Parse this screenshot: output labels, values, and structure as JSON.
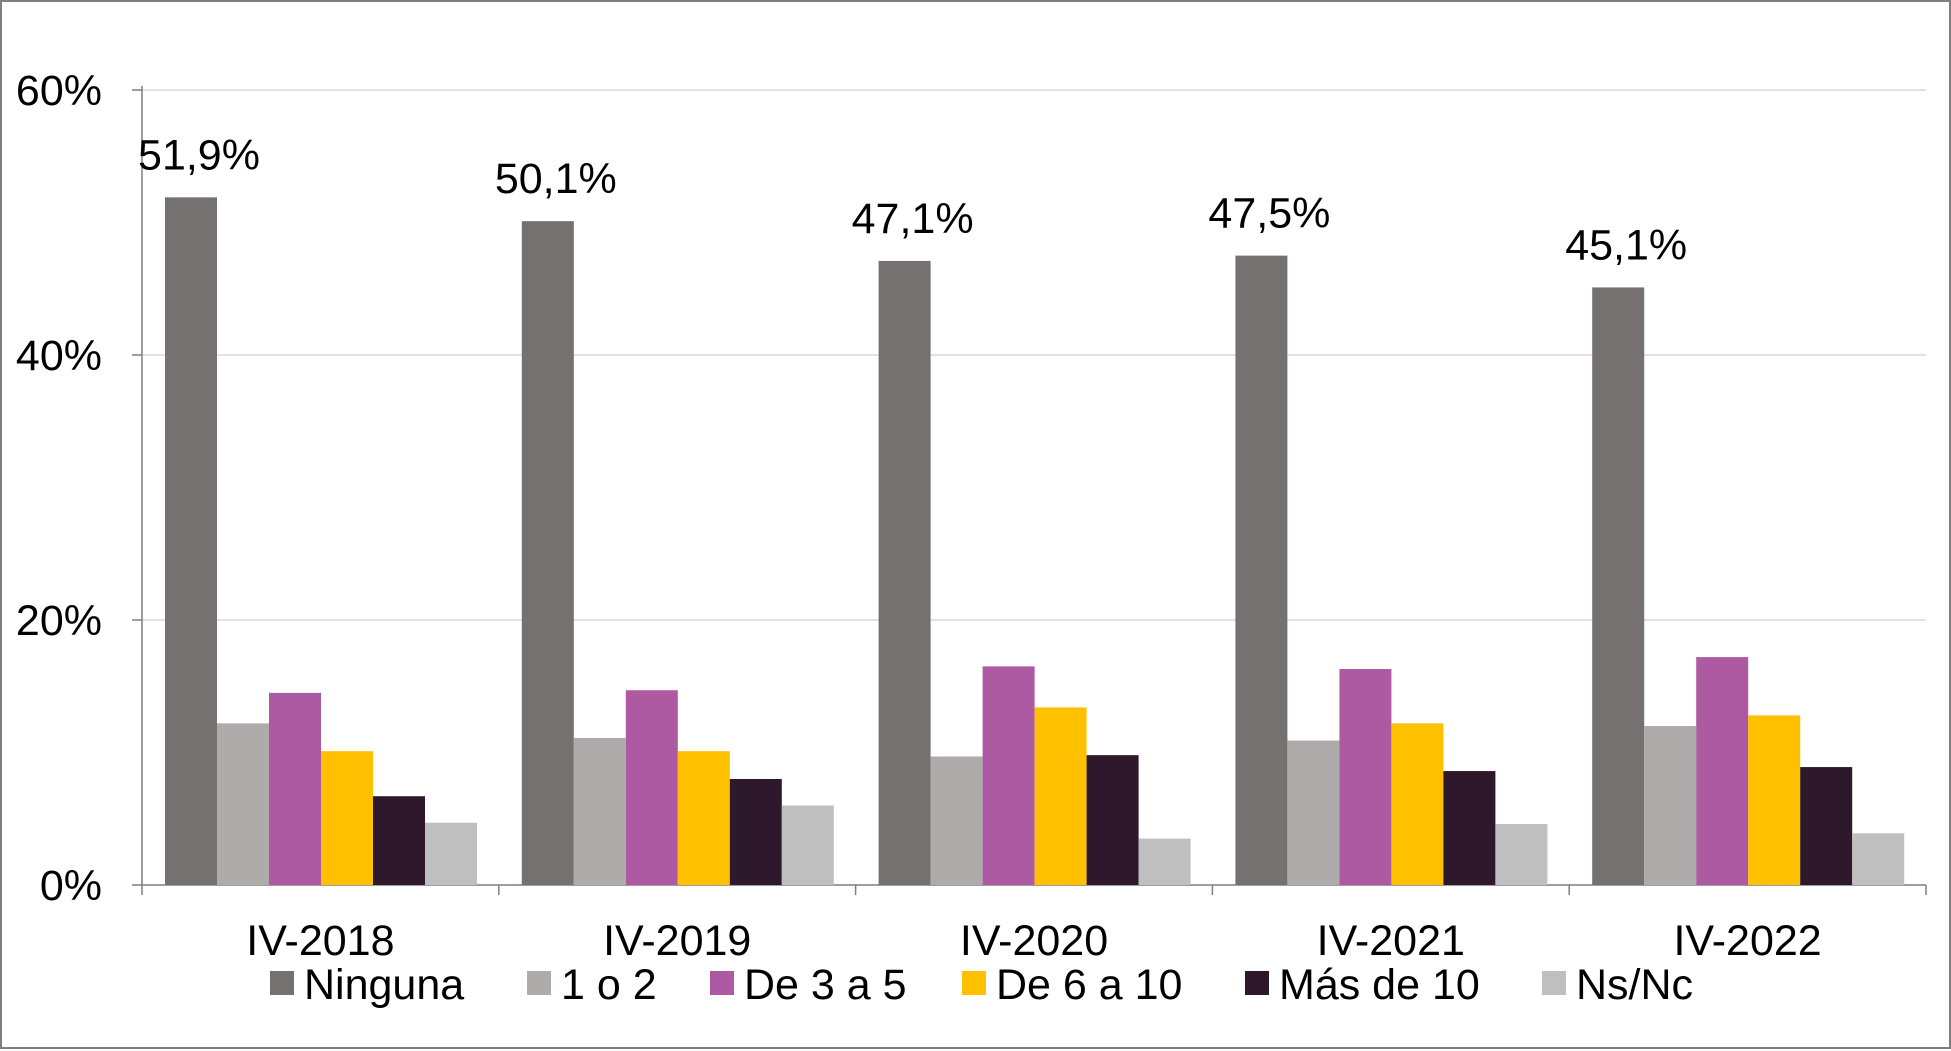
{
  "chart_data": {
    "type": "bar",
    "categories": [
      "IV-2018",
      "IV-2019",
      "IV-2020",
      "IV-2021",
      "IV-2022"
    ],
    "series": [
      {
        "name": "Ninguna",
        "color": "#767171",
        "values": [
          51.9,
          50.1,
          47.1,
          47.5,
          45.1
        ]
      },
      {
        "name": "1 o 2",
        "color": "#afabab",
        "values": [
          12.2,
          11.1,
          9.7,
          10.9,
          12.0
        ]
      },
      {
        "name": "De 3 a 5",
        "color": "#ad5aa3",
        "values": [
          14.5,
          14.7,
          16.5,
          16.3,
          17.2
        ]
      },
      {
        "name": "De 6 a 10",
        "color": "#ffc000",
        "values": [
          10.1,
          10.1,
          13.4,
          12.2,
          12.8
        ]
      },
      {
        "name": "Más de 10",
        "color": "#2e182c",
        "values": [
          6.7,
          8.0,
          9.8,
          8.6,
          8.9
        ]
      },
      {
        "name": "Ns/Nc",
        "color": "#bfbfbf",
        "values": [
          4.7,
          6.0,
          3.5,
          4.6,
          3.9
        ]
      }
    ],
    "data_labels": {
      "series": "Ninguna",
      "texts": [
        "51,9%",
        "50,1%",
        "47,1%",
        "47,5%",
        "45,1%"
      ]
    },
    "ylim": [
      0,
      60
    ],
    "yticks": [
      0,
      20,
      40,
      60
    ],
    "ytick_labels": [
      "0%",
      "20%",
      "40%",
      "60%"
    ],
    "grid": true,
    "legend_position": "bottom",
    "title": "",
    "xlabel": "",
    "ylabel": ""
  }
}
